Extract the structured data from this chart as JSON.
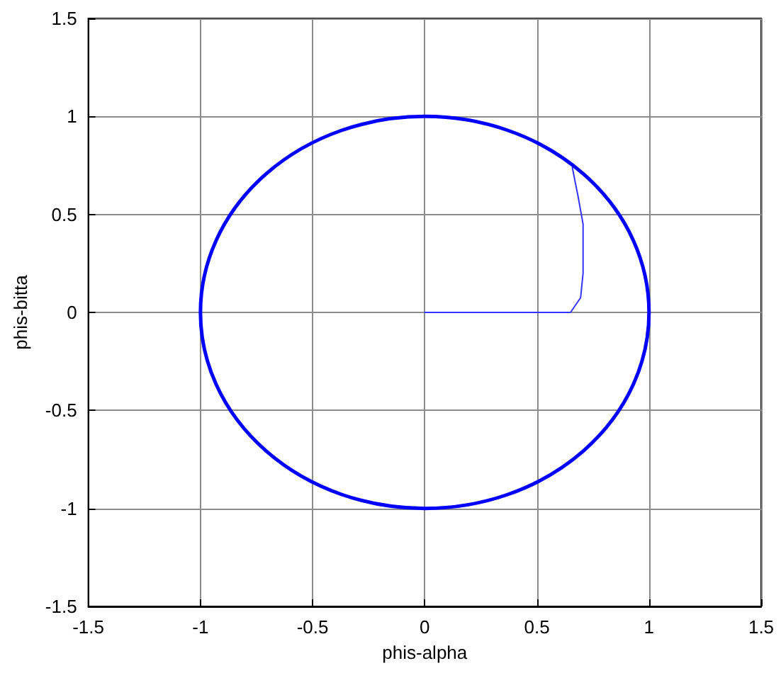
{
  "chart_data": {
    "type": "line",
    "xlabel": "phis-alpha",
    "ylabel": "phis-bitta",
    "xlim": [
      -1.5,
      1.5
    ],
    "ylim": [
      -1.5,
      1.5
    ],
    "xticks": [
      -1.5,
      -1,
      -0.5,
      0,
      0.5,
      1,
      1.5
    ],
    "yticks": [
      -1.5,
      -1,
      -0.5,
      0,
      0.5,
      1,
      1.5
    ],
    "grid": true,
    "marker": "none",
    "line_style": "solid",
    "series": [
      {
        "color": "#3333ff",
        "x": [
          0,
          0.65,
          0.695,
          0.706,
          0.706,
          0.695,
          0.684,
          0.67,
          0.658
        ],
        "values": [
          0,
          0,
          0.075,
          0.2,
          0.45,
          0.52,
          0.59,
          0.67,
          0.74
        ]
      }
    ]
  }
}
